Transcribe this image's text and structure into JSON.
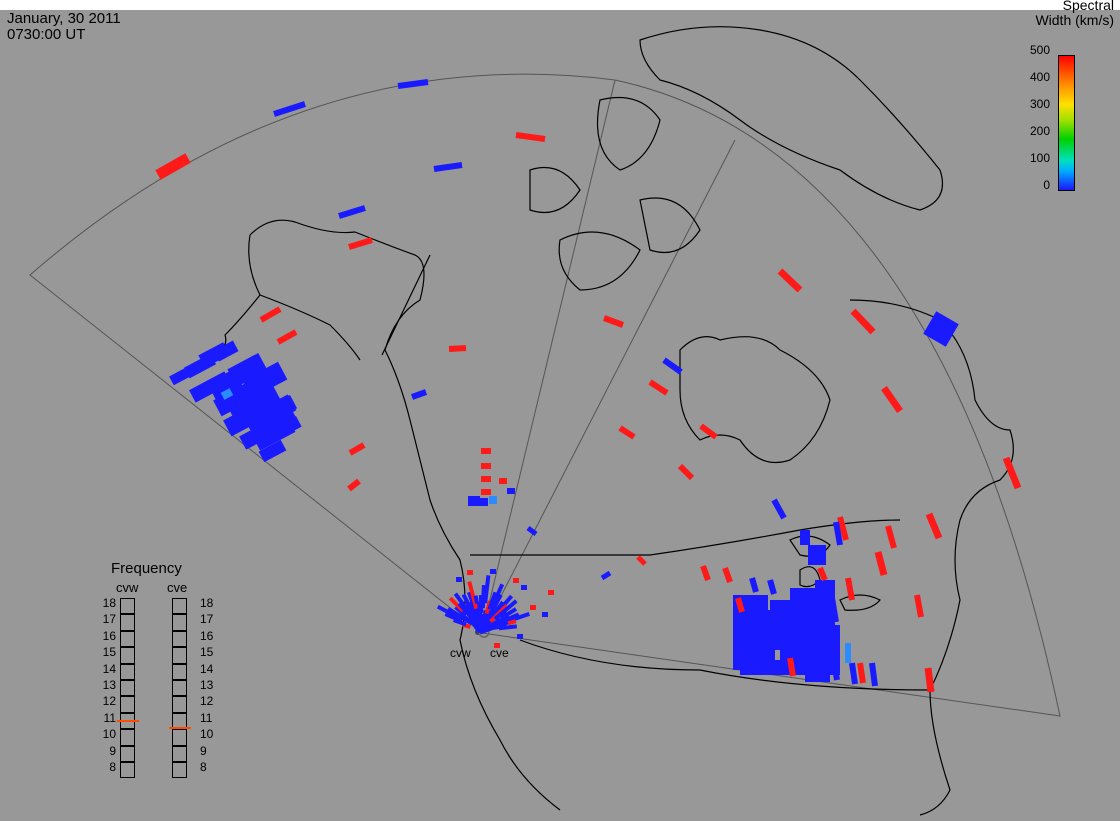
{
  "header": {
    "date": "January, 30 2011",
    "time": "0730:00 UT"
  },
  "legend": {
    "title_line1": "Spectral",
    "title_line2": "Width (km/s)",
    "ticks": [
      "500",
      "400",
      "300",
      "200",
      "100",
      "0"
    ],
    "range": [
      0,
      500
    ],
    "colors": {
      "low": "#1a1aff",
      "mid": "#00d000",
      "high": "#ff0000"
    }
  },
  "frequency": {
    "title": "Frequency",
    "columns": [
      {
        "label": "cvw",
        "value_mhz": 10.9
      },
      {
        "label": "cve",
        "value_mhz": 10.5
      }
    ],
    "scale": [
      "18",
      "17",
      "16",
      "15",
      "14",
      "13",
      "12",
      "11",
      "10",
      "9",
      "8"
    ],
    "marker_color": "#ff4a00"
  },
  "sites": {
    "west": "cvw",
    "east": "cve"
  },
  "colors": {
    "background": "#989898",
    "coastline": "#000000",
    "fov_outline": "#505050",
    "blue": "#1a1aff",
    "red": "#ff1a1a",
    "light_blue": "#2a8cff"
  }
}
